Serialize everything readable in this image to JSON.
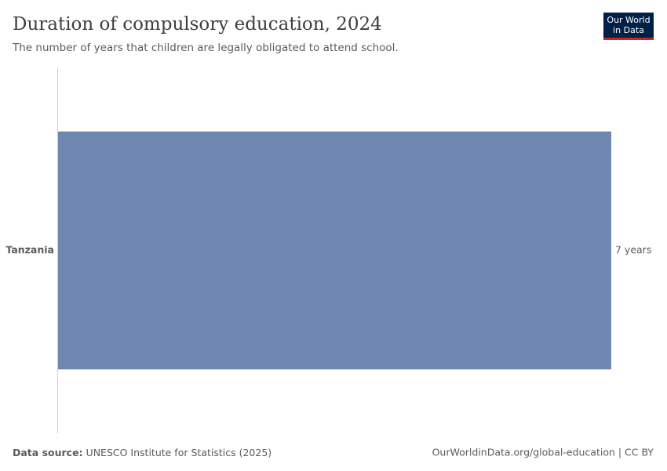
{
  "chart_data": {
    "type": "hbar",
    "title": "Duration of compulsory education, 2024",
    "subtitle": "The number of years that children are legally obligated to attend school.",
    "categories": [
      "Tanzania"
    ],
    "values": [
      7
    ],
    "value_labels": [
      "7 years"
    ],
    "color": "#6f87b0",
    "xlim": [
      0,
      7
    ],
    "source_label": "Data source:",
    "source": "UNESCO Institute for Statistics (2025)",
    "credit": "OurWorldinData.org/global-education | CC BY",
    "logo_lines": [
      "Our World",
      "in Data"
    ]
  }
}
